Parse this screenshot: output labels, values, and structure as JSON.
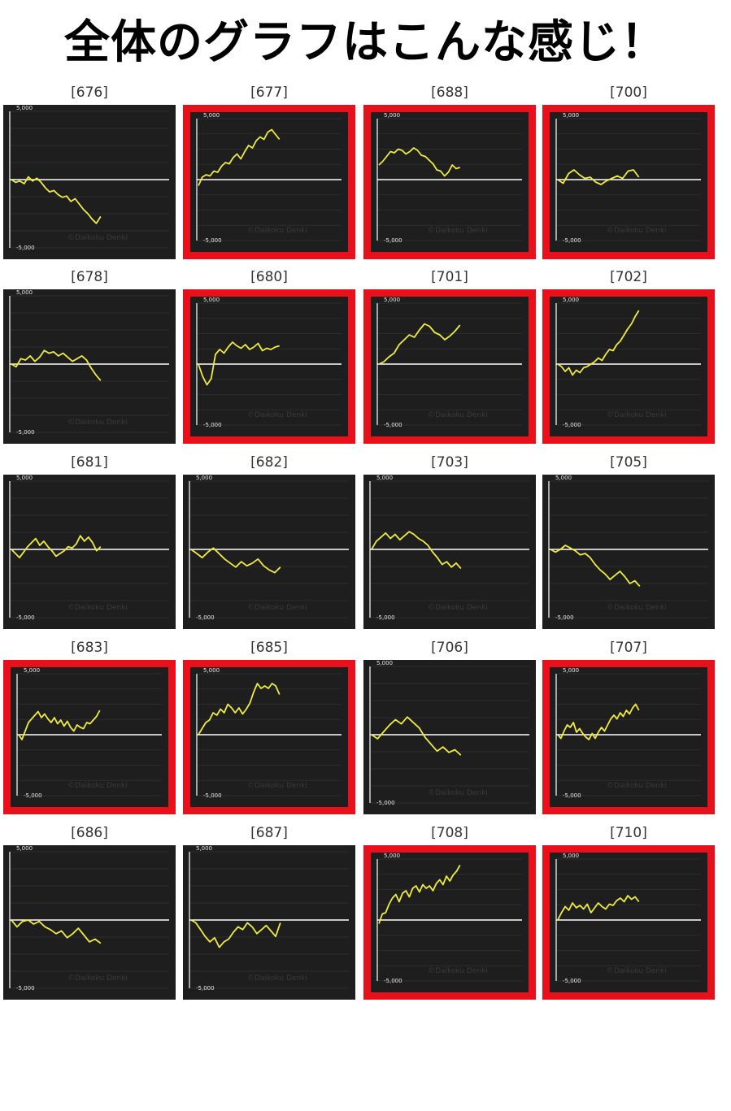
{
  "title": "全体のグラフはこんな感じ！",
  "colors": {
    "background": "#ffffff",
    "panel": "#1e1e1e",
    "line": "#f0ec3c",
    "highlight": "#e8101a",
    "zero_line": "#ffffff"
  },
  "chart_data": [
    {
      "type": "line",
      "label": "[676]",
      "highlighted": false,
      "ylim": [
        -5000,
        5000
      ],
      "y_ticks": [
        "5,000",
        "-5,000"
      ],
      "watermark": "©Daikoku Denki",
      "values": [
        0,
        -200,
        -100,
        -300,
        200,
        -100,
        100,
        -200,
        -600,
        -900,
        -800,
        -1100,
        -1300,
        -1200,
        -1600,
        -1400,
        -1800,
        -2200,
        -2500,
        -2900,
        -3200,
        -2700
      ]
    },
    {
      "type": "line",
      "label": "[677]",
      "highlighted": true,
      "ylim": [
        -5000,
        5000
      ],
      "y_ticks": [
        "5,000",
        "-5,000"
      ],
      "watermark": "©Daikoku Denki",
      "values": [
        -500,
        200,
        400,
        300,
        700,
        600,
        1100,
        1400,
        1300,
        1800,
        2100,
        1700,
        2300,
        2800,
        2600,
        3200,
        3500,
        3300,
        3900,
        4100,
        3700,
        3300
      ]
    },
    {
      "type": "line",
      "label": "[688]",
      "highlighted": true,
      "ylim": [
        -5000,
        5000
      ],
      "y_ticks": [
        "5,000",
        "-5,000"
      ],
      "watermark": "©Daikoku Denki",
      "values": [
        1200,
        1500,
        1900,
        2300,
        2200,
        2500,
        2400,
        2100,
        2300,
        2600,
        2400,
        2000,
        1900,
        1600,
        1300,
        800,
        700,
        300,
        600,
        1200,
        900,
        1000
      ]
    },
    {
      "type": "line",
      "label": "[700]",
      "highlighted": true,
      "ylim": [
        -5000,
        5000
      ],
      "y_ticks": [
        "5,000",
        "-5,000"
      ],
      "watermark": "©Daikoku Denki",
      "values": [
        0,
        -300,
        500,
        800,
        400,
        100,
        200,
        -200,
        -400,
        -100,
        100,
        300,
        100,
        700,
        800,
        200
      ]
    },
    {
      "type": "line",
      "label": "[678]",
      "highlighted": false,
      "ylim": [
        -5000,
        5000
      ],
      "y_ticks": [
        "5,000",
        "-5,000"
      ],
      "watermark": "©Daikoku Denki",
      "values": [
        0,
        -200,
        400,
        300,
        600,
        200,
        500,
        1000,
        800,
        900,
        600,
        800,
        500,
        200,
        400,
        600,
        300,
        -300,
        -800,
        -1200
      ]
    },
    {
      "type": "line",
      "label": "[680]",
      "highlighted": true,
      "ylim": [
        -5000,
        5000
      ],
      "y_ticks": [
        "5,000",
        "-5,000"
      ],
      "watermark": "©Daikoku Denki",
      "values": [
        0,
        -1000,
        -1700,
        -1200,
        800,
        1200,
        900,
        1400,
        1800,
        1500,
        1300,
        1600,
        1200,
        1400,
        1700,
        1100,
        1300,
        1200,
        1400,
        1500
      ]
    },
    {
      "type": "line",
      "label": "[701]",
      "highlighted": true,
      "ylim": [
        -5000,
        5000
      ],
      "y_ticks": [
        "5,000",
        "-5,000"
      ],
      "watermark": "©Daikoku Denki",
      "values": [
        0,
        200,
        600,
        900,
        1600,
        2000,
        2400,
        2200,
        2800,
        3300,
        3100,
        2600,
        2400,
        2000,
        2300,
        2700,
        3200
      ]
    },
    {
      "type": "line",
      "label": "[702]",
      "highlighted": true,
      "ylim": [
        -5000,
        5000
      ],
      "y_ticks": [
        "5,000",
        "-5,000"
      ],
      "watermark": "©Daikoku Denki",
      "values": [
        0,
        -200,
        -600,
        -300,
        -900,
        -500,
        -700,
        -300,
        -200,
        0,
        200,
        500,
        300,
        800,
        1200,
        1100,
        1600,
        1900,
        2400,
        2900,
        3300,
        3900,
        4400
      ]
    },
    {
      "type": "line",
      "label": "[681]",
      "highlighted": false,
      "ylim": [
        -5000,
        5000
      ],
      "y_ticks": [
        "5,000",
        "-5,000"
      ],
      "watermark": "©Daikoku Denki",
      "values": [
        0,
        -300,
        -600,
        -200,
        200,
        500,
        800,
        300,
        600,
        200,
        -100,
        -500,
        -300,
        -100,
        200,
        100,
        400,
        1000,
        600,
        900,
        500,
        -100,
        200
      ]
    },
    {
      "type": "line",
      "label": "[682]",
      "highlighted": false,
      "ylim": [
        -5000,
        5000
      ],
      "y_ticks": [
        "5,000",
        "-5,000"
      ],
      "watermark": "©Daikoku Denki",
      "values": [
        0,
        -300,
        -600,
        -200,
        100,
        -300,
        -700,
        -1000,
        -1300,
        -900,
        -1200,
        -1000,
        -700,
        -1200,
        -1500,
        -1700,
        -1300
      ]
    },
    {
      "type": "line",
      "label": "[703]",
      "highlighted": false,
      "ylim": [
        -5000,
        5000
      ],
      "y_ticks": [
        "5,000",
        "-5,000"
      ],
      "watermark": "©Daikoku Denki",
      "values": [
        0,
        600,
        900,
        1200,
        800,
        1100,
        700,
        1000,
        1300,
        1100,
        800,
        600,
        300,
        -200,
        -600,
        -1100,
        -900,
        -1300,
        -1000,
        -1400
      ]
    },
    {
      "type": "line",
      "label": "[705]",
      "highlighted": false,
      "ylim": [
        -5000,
        5000
      ],
      "y_ticks": [
        "5,000",
        "-5,000"
      ],
      "watermark": "©Daikoku Denki",
      "values": [
        0,
        -200,
        0,
        300,
        100,
        -100,
        -400,
        -300,
        -600,
        -1100,
        -1500,
        -1800,
        -2200,
        -1900,
        -1600,
        -2000,
        -2500,
        -2300,
        -2700
      ]
    },
    {
      "type": "line",
      "label": "[683]",
      "highlighted": true,
      "ylim": [
        -5000,
        5000
      ],
      "y_ticks": [
        "5,000",
        "-5,000"
      ],
      "watermark": "©Daikoku Denki",
      "values": [
        0,
        -400,
        300,
        1000,
        1300,
        1600,
        1900,
        1400,
        1700,
        1300,
        1000,
        1400,
        900,
        1200,
        700,
        1100,
        600,
        300,
        800,
        600,
        500,
        1000,
        900,
        1200,
        1500,
        2000
      ]
    },
    {
      "type": "line",
      "label": "[685]",
      "highlighted": true,
      "ylim": [
        -5000,
        5000
      ],
      "y_ticks": [
        "5,000",
        "-5,000"
      ],
      "watermark": "©Daikoku Denki",
      "values": [
        0,
        500,
        1000,
        1200,
        1800,
        1600,
        2100,
        1800,
        2500,
        2200,
        1800,
        2200,
        1700,
        2100,
        2600,
        3500,
        4200,
        3800,
        4000,
        3800,
        4200,
        4000,
        3300
      ]
    },
    {
      "type": "line",
      "label": "[706]",
      "highlighted": false,
      "ylim": [
        -5000,
        5000
      ],
      "y_ticks": [
        "5,000",
        "-5,000"
      ],
      "watermark": "©Daikoku Denki",
      "values": [
        0,
        -300,
        200,
        700,
        1100,
        800,
        1300,
        900,
        500,
        -200,
        -700,
        -1200,
        -900,
        -1300,
        -1100,
        -1500
      ]
    },
    {
      "type": "line",
      "label": "[707]",
      "highlighted": true,
      "ylim": [
        -5000,
        5000
      ],
      "y_ticks": [
        "5,000",
        "-5,000"
      ],
      "watermark": "©Daikoku Denki",
      "values": [
        0,
        -300,
        300,
        800,
        600,
        1000,
        200,
        500,
        100,
        -200,
        -400,
        100,
        -300,
        200,
        600,
        300,
        800,
        1300,
        1600,
        1300,
        1800,
        1500,
        2000,
        1700,
        2200,
        2500,
        2000
      ]
    },
    {
      "type": "line",
      "label": "[686]",
      "highlighted": false,
      "ylim": [
        -5000,
        5000
      ],
      "y_ticks": [
        "5,000",
        "-5,000"
      ],
      "watermark": "©Daikoku Denki",
      "values": [
        0,
        -500,
        -100,
        0,
        -300,
        -100,
        -500,
        -700,
        -1000,
        -800,
        -1300,
        -1000,
        -600,
        -1100,
        -1600,
        -1400,
        -1700
      ]
    },
    {
      "type": "line",
      "label": "[687]",
      "highlighted": false,
      "ylim": [
        -5000,
        5000
      ],
      "y_ticks": [
        "5,000",
        "-5,000"
      ],
      "watermark": "©Daikoku Denki",
      "values": [
        0,
        -200,
        -700,
        -1200,
        -1600,
        -1300,
        -2000,
        -1600,
        -1400,
        -900,
        -500,
        -700,
        -200,
        -500,
        -1000,
        -700,
        -400,
        -800,
        -1200,
        -200
      ]
    },
    {
      "type": "line",
      "label": "[708]",
      "highlighted": true,
      "ylim": [
        -5000,
        5000
      ],
      "y_ticks": [
        "5,000",
        "-5,000"
      ],
      "watermark": "©Daikoku Denki",
      "values": [
        -300,
        500,
        600,
        1300,
        1800,
        2100,
        1500,
        2200,
        2400,
        1900,
        2600,
        2800,
        2300,
        2900,
        2600,
        2800,
        2400,
        3000,
        3300,
        2900,
        3600,
        3200,
        3700,
        4000,
        4500
      ]
    },
    {
      "type": "line",
      "label": "[710]",
      "highlighted": true,
      "ylim": [
        -5000,
        5000
      ],
      "y_ticks": [
        "5,000",
        "-5,000"
      ],
      "watermark": "©Daikoku Denki",
      "values": [
        0,
        600,
        1100,
        800,
        1400,
        1000,
        1200,
        900,
        1300,
        600,
        1000,
        1400,
        1100,
        900,
        1300,
        1200,
        1600,
        1800,
        1500,
        2000,
        1700,
        1900,
        1500
      ]
    }
  ]
}
